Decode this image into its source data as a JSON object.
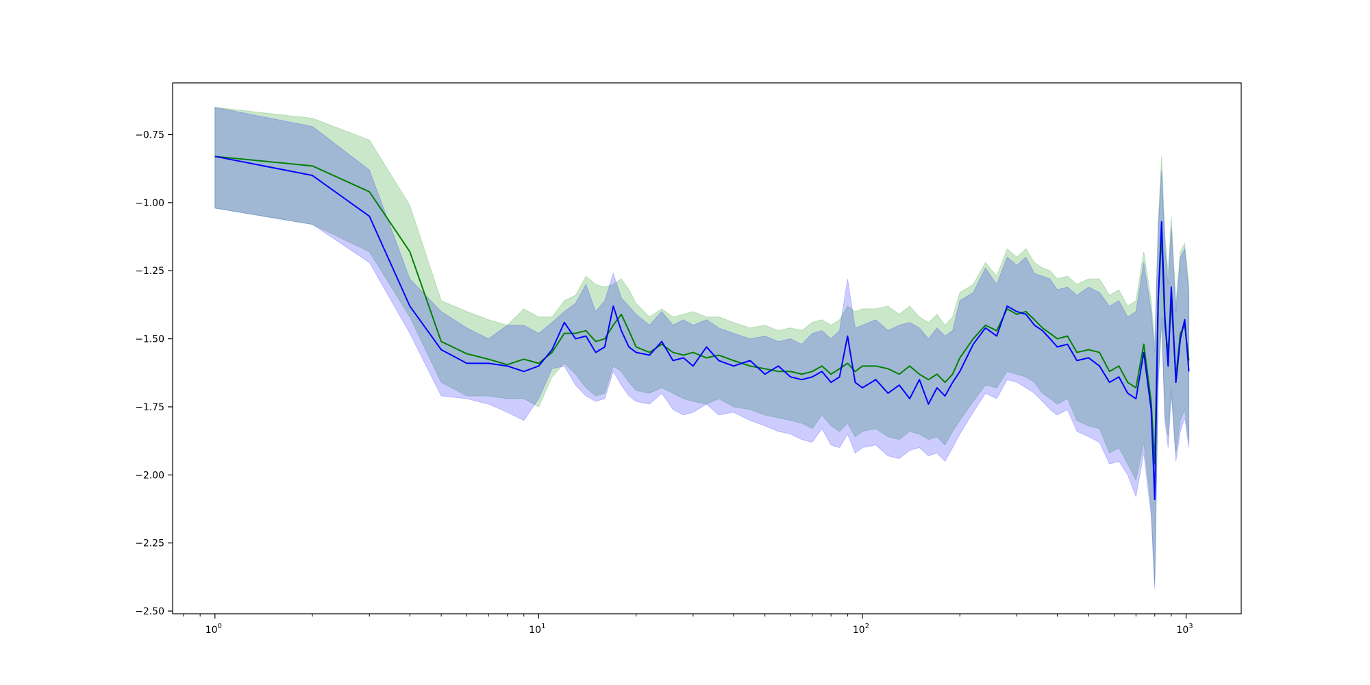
{
  "chart_data": {
    "type": "line",
    "title": "",
    "xlabel": "",
    "ylabel": "",
    "x_scale": "log",
    "xlim": [
      0.74,
      1480
    ],
    "ylim": [
      -2.51,
      -0.56
    ],
    "grid": false,
    "x_ticks": [
      {
        "value": 1,
        "base": "10",
        "exp": "0"
      },
      {
        "value": 10,
        "base": "10",
        "exp": "1"
      },
      {
        "value": 100,
        "base": "10",
        "exp": "2"
      },
      {
        "value": 1000,
        "base": "10",
        "exp": "3"
      }
    ],
    "y_ticks": [
      {
        "value": -0.75,
        "label": "−0.75"
      },
      {
        "value": -1.0,
        "label": "−1.00"
      },
      {
        "value": -1.25,
        "label": "−1.25"
      },
      {
        "value": -1.5,
        "label": "−1.50"
      },
      {
        "value": -1.75,
        "label": "−1.75"
      },
      {
        "value": -2.0,
        "label": "−2.00"
      },
      {
        "value": -2.25,
        "label": "−2.25"
      },
      {
        "value": -2.5,
        "label": "−2.50"
      }
    ],
    "series": [
      {
        "color": "#008000",
        "band_color": "#2ca02c",
        "band_opacity": 0.25,
        "x": [
          1,
          2,
          3,
          4,
          5,
          6,
          7,
          8,
          9,
          10,
          11,
          12,
          13,
          14,
          15,
          16,
          17,
          18,
          19,
          20,
          22,
          24,
          26,
          28,
          30,
          33,
          36,
          40,
          45,
          50,
          55,
          60,
          65,
          70,
          75,
          80,
          85,
          90,
          95,
          100,
          110,
          120,
          130,
          140,
          150,
          160,
          170,
          180,
          190,
          200,
          220,
          240,
          260,
          280,
          300,
          320,
          340,
          360,
          380,
          400,
          430,
          460,
          500,
          540,
          580,
          620,
          660,
          700,
          740,
          780,
          800,
          820,
          840,
          860,
          880,
          900,
          930,
          960,
          990,
          1020
        ],
        "y": [
          -0.83,
          -0.865,
          -0.96,
          -1.18,
          -1.51,
          -1.555,
          -1.575,
          -1.595,
          -1.575,
          -1.59,
          -1.55,
          -1.48,
          -1.48,
          -1.47,
          -1.51,
          -1.5,
          -1.45,
          -1.41,
          -1.47,
          -1.53,
          -1.55,
          -1.52,
          -1.55,
          -1.56,
          -1.55,
          -1.57,
          -1.56,
          -1.58,
          -1.6,
          -1.61,
          -1.62,
          -1.62,
          -1.63,
          -1.62,
          -1.6,
          -1.63,
          -1.61,
          -1.59,
          -1.62,
          -1.6,
          -1.6,
          -1.61,
          -1.63,
          -1.6,
          -1.63,
          -1.65,
          -1.63,
          -1.66,
          -1.63,
          -1.57,
          -1.5,
          -1.45,
          -1.47,
          -1.39,
          -1.41,
          -1.4,
          -1.43,
          -1.46,
          -1.48,
          -1.5,
          -1.49,
          -1.55,
          -1.54,
          -1.55,
          -1.62,
          -1.6,
          -1.66,
          -1.68,
          -1.52,
          -1.73,
          -1.96,
          -1.35,
          -1.12,
          -1.45,
          -1.55,
          -1.36,
          -1.64,
          -1.48,
          -1.45,
          -1.58
        ],
        "lower": [
          -1.02,
          -1.08,
          -1.18,
          -1.42,
          -1.66,
          -1.71,
          -1.71,
          -1.72,
          -1.72,
          -1.75,
          -1.64,
          -1.59,
          -1.63,
          -1.68,
          -1.71,
          -1.7,
          -1.6,
          -1.62,
          -1.66,
          -1.69,
          -1.7,
          -1.68,
          -1.7,
          -1.72,
          -1.73,
          -1.74,
          -1.72,
          -1.75,
          -1.76,
          -1.78,
          -1.79,
          -1.8,
          -1.81,
          -1.83,
          -1.78,
          -1.82,
          -1.84,
          -1.81,
          -1.86,
          -1.84,
          -1.83,
          -1.86,
          -1.87,
          -1.84,
          -1.85,
          -1.87,
          -1.86,
          -1.89,
          -1.84,
          -1.8,
          -1.73,
          -1.67,
          -1.68,
          -1.62,
          -1.63,
          -1.64,
          -1.66,
          -1.7,
          -1.72,
          -1.74,
          -1.72,
          -1.8,
          -1.82,
          -1.83,
          -1.92,
          -1.9,
          -1.96,
          -2.02,
          -1.88,
          -2.12,
          -2.4,
          -1.64,
          -1.45,
          -1.78,
          -1.86,
          -1.68,
          -1.92,
          -1.8,
          -1.76,
          -1.88
        ],
        "upper": [
          -0.65,
          -0.69,
          -0.77,
          -1.01,
          -1.36,
          -1.4,
          -1.43,
          -1.45,
          -1.39,
          -1.42,
          -1.42,
          -1.36,
          -1.34,
          -1.27,
          -1.3,
          -1.31,
          -1.3,
          -1.28,
          -1.32,
          -1.37,
          -1.42,
          -1.39,
          -1.42,
          -1.41,
          -1.4,
          -1.42,
          -1.42,
          -1.44,
          -1.46,
          -1.45,
          -1.47,
          -1.46,
          -1.47,
          -1.44,
          -1.43,
          -1.45,
          -1.43,
          -1.38,
          -1.4,
          -1.39,
          -1.39,
          -1.38,
          -1.41,
          -1.38,
          -1.42,
          -1.44,
          -1.41,
          -1.45,
          -1.42,
          -1.33,
          -1.3,
          -1.22,
          -1.27,
          -1.17,
          -1.2,
          -1.17,
          -1.22,
          -1.24,
          -1.25,
          -1.28,
          -1.27,
          -1.3,
          -1.28,
          -1.28,
          -1.34,
          -1.32,
          -1.38,
          -1.36,
          -1.18,
          -1.36,
          -1.52,
          -1.07,
          -0.83,
          -1.12,
          -1.26,
          -1.05,
          -1.37,
          -1.18,
          -1.15,
          -1.3
        ]
      },
      {
        "color": "#0000ff",
        "band_color": "#0000ff",
        "band_opacity": 0.2,
        "x": [
          1,
          2,
          3,
          4,
          5,
          6,
          7,
          8,
          9,
          10,
          11,
          12,
          13,
          14,
          15,
          16,
          17,
          18,
          19,
          20,
          22,
          24,
          26,
          28,
          30,
          33,
          36,
          40,
          45,
          50,
          55,
          60,
          65,
          70,
          75,
          80,
          85,
          90,
          95,
          100,
          110,
          120,
          130,
          140,
          150,
          160,
          170,
          180,
          190,
          200,
          220,
          240,
          260,
          280,
          300,
          320,
          340,
          360,
          380,
          400,
          430,
          460,
          500,
          540,
          580,
          620,
          660,
          700,
          740,
          780,
          800,
          820,
          840,
          860,
          880,
          900,
          930,
          960,
          990,
          1020
        ],
        "y": [
          -0.83,
          -0.9,
          -1.05,
          -1.38,
          -1.54,
          -1.59,
          -1.59,
          -1.6,
          -1.62,
          -1.6,
          -1.54,
          -1.44,
          -1.5,
          -1.49,
          -1.55,
          -1.53,
          -1.38,
          -1.47,
          -1.53,
          -1.55,
          -1.56,
          -1.51,
          -1.58,
          -1.57,
          -1.6,
          -1.53,
          -1.58,
          -1.6,
          -1.58,
          -1.63,
          -1.6,
          -1.64,
          -1.65,
          -1.64,
          -1.62,
          -1.66,
          -1.64,
          -1.49,
          -1.66,
          -1.68,
          -1.65,
          -1.7,
          -1.67,
          -1.72,
          -1.65,
          -1.74,
          -1.68,
          -1.71,
          -1.66,
          -1.62,
          -1.52,
          -1.46,
          -1.49,
          -1.38,
          -1.4,
          -1.41,
          -1.45,
          -1.47,
          -1.5,
          -1.53,
          -1.52,
          -1.58,
          -1.57,
          -1.6,
          -1.66,
          -1.64,
          -1.7,
          -1.72,
          -1.55,
          -1.76,
          -2.09,
          -1.36,
          -1.07,
          -1.42,
          -1.6,
          -1.31,
          -1.66,
          -1.5,
          -1.43,
          -1.62
        ],
        "lower": [
          -1.02,
          -1.08,
          -1.22,
          -1.48,
          -1.71,
          -1.72,
          -1.74,
          -1.77,
          -1.8,
          -1.72,
          -1.61,
          -1.6,
          -1.67,
          -1.71,
          -1.73,
          -1.72,
          -1.62,
          -1.67,
          -1.71,
          -1.73,
          -1.74,
          -1.7,
          -1.76,
          -1.78,
          -1.77,
          -1.74,
          -1.78,
          -1.77,
          -1.8,
          -1.82,
          -1.84,
          -1.85,
          -1.87,
          -1.88,
          -1.83,
          -1.89,
          -1.9,
          -1.85,
          -1.92,
          -1.9,
          -1.89,
          -1.93,
          -1.94,
          -1.91,
          -1.9,
          -1.93,
          -1.92,
          -1.95,
          -1.9,
          -1.85,
          -1.77,
          -1.7,
          -1.72,
          -1.65,
          -1.66,
          -1.68,
          -1.7,
          -1.73,
          -1.76,
          -1.78,
          -1.76,
          -1.84,
          -1.86,
          -1.88,
          -1.96,
          -1.95,
          -2.0,
          -2.08,
          -1.92,
          -2.15,
          -2.42,
          -1.68,
          -1.42,
          -1.8,
          -1.9,
          -1.7,
          -1.95,
          -1.84,
          -1.79,
          -1.9
        ],
        "upper": [
          -0.65,
          -0.72,
          -0.88,
          -1.28,
          -1.4,
          -1.46,
          -1.5,
          -1.45,
          -1.45,
          -1.48,
          -1.44,
          -1.4,
          -1.37,
          -1.3,
          -1.4,
          -1.36,
          -1.26,
          -1.35,
          -1.38,
          -1.41,
          -1.45,
          -1.4,
          -1.45,
          -1.43,
          -1.45,
          -1.43,
          -1.46,
          -1.48,
          -1.5,
          -1.49,
          -1.51,
          -1.5,
          -1.52,
          -1.48,
          -1.47,
          -1.5,
          -1.47,
          -1.28,
          -1.46,
          -1.45,
          -1.43,
          -1.47,
          -1.45,
          -1.44,
          -1.46,
          -1.5,
          -1.46,
          -1.49,
          -1.47,
          -1.36,
          -1.33,
          -1.24,
          -1.3,
          -1.2,
          -1.23,
          -1.2,
          -1.26,
          -1.27,
          -1.28,
          -1.32,
          -1.31,
          -1.34,
          -1.31,
          -1.33,
          -1.38,
          -1.36,
          -1.42,
          -1.4,
          -1.22,
          -1.4,
          -1.55,
          -1.1,
          -0.88,
          -1.16,
          -1.3,
          -1.09,
          -1.4,
          -1.2,
          -1.17,
          -1.33
        ]
      }
    ]
  }
}
